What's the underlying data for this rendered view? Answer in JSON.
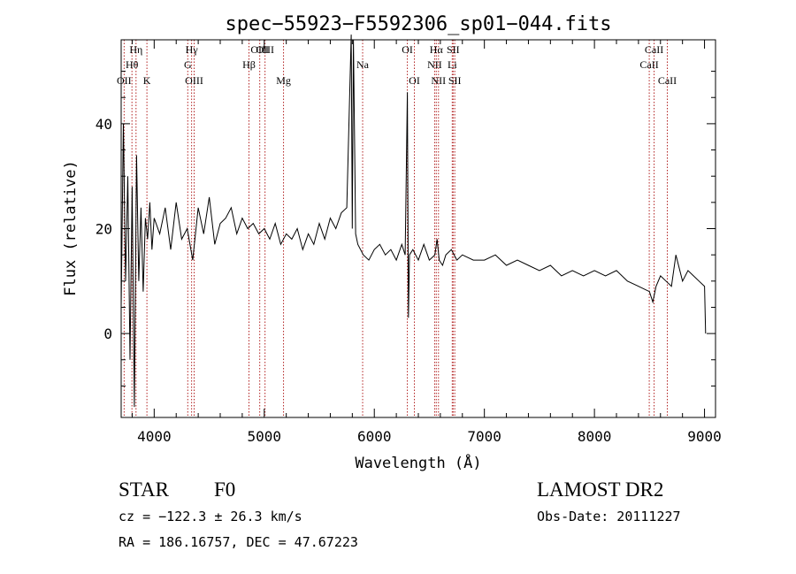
{
  "chart_data": {
    "type": "line",
    "title": "spec−55923−F5592306_sp01−044.fits",
    "xlabel": "Wavelength (Å)",
    "ylabel": "Flux (relative)",
    "xlim": [
      3700,
      9100
    ],
    "ylim": [
      -16,
      56
    ],
    "xticks": [
      4000,
      5000,
      6000,
      7000,
      8000,
      9000
    ],
    "yticks": [
      0,
      20,
      40
    ],
    "line_color": "#000000",
    "marker_color": "#b22222",
    "series": [
      {
        "x": [
          3700,
          3720,
          3740,
          3760,
          3780,
          3800,
          3820,
          3840,
          3860,
          3880,
          3900,
          3920,
          3940,
          3960,
          3980,
          4000,
          4050,
          4100,
          4150,
          4200,
          4250,
          4300,
          4350,
          4400,
          4450,
          4500,
          4550,
          4600,
          4650,
          4700,
          4750,
          4800,
          4850,
          4900,
          4950,
          5000,
          5050,
          5100,
          5150,
          5200,
          5250,
          5300,
          5350,
          5400,
          5450,
          5500,
          5550,
          5600,
          5650,
          5700,
          5750,
          5790,
          5800,
          5810,
          5830,
          5850,
          5900,
          5950,
          6000,
          6050,
          6100,
          6150,
          6200,
          6250,
          6280,
          6300,
          6310,
          6320,
          6350,
          6400,
          6450,
          6500,
          6550,
          6570,
          6590,
          6620,
          6650,
          6700,
          6750,
          6800,
          6900,
          7000,
          7100,
          7200,
          7300,
          7400,
          7500,
          7600,
          7700,
          7800,
          7900,
          8000,
          8100,
          8200,
          8300,
          8400,
          8500,
          8530,
          8560,
          8600,
          8650,
          8700,
          8740,
          8800,
          8850,
          8900,
          8950,
          9000,
          9010
        ],
        "y": [
          5,
          40,
          10,
          30,
          -5,
          28,
          -14,
          34,
          10,
          24,
          8,
          22,
          18,
          25,
          16,
          22,
          19,
          24,
          16,
          25,
          18,
          20,
          14,
          24,
          19,
          26,
          17,
          21,
          22,
          24,
          19,
          22,
          20,
          21,
          19,
          20,
          18,
          21,
          17,
          19,
          18,
          20,
          16,
          19,
          17,
          21,
          18,
          22,
          20,
          23,
          24,
          57,
          20,
          56,
          19,
          17,
          15,
          14,
          16,
          17,
          15,
          16,
          14,
          17,
          15,
          46,
          3,
          15,
          16,
          14,
          17,
          14,
          15,
          18,
          14,
          13,
          15,
          16,
          14,
          15,
          14,
          14,
          15,
          13,
          14,
          13,
          12,
          13,
          11,
          12,
          11,
          12,
          11,
          12,
          10,
          9,
          8,
          6,
          9,
          11,
          10,
          9,
          15,
          10,
          12,
          11,
          10,
          9,
          0
        ]
      }
    ],
    "lines": [
      {
        "label": "OII",
        "wavelength": 3727,
        "row": 3,
        "text_offset": 0
      },
      {
        "label": "Hθ",
        "wavelength": 3798,
        "row": 2,
        "text_offset": 0
      },
      {
        "label": "Hη",
        "wavelength": 3835,
        "row": 1,
        "text_offset": 0
      },
      {
        "label": "K",
        "wavelength": 3934,
        "row": 3,
        "text_offset": 0
      },
      {
        "label": "Hγ",
        "wavelength": 4340,
        "row": 1,
        "text_offset": 0
      },
      {
        "label": "G",
        "wavelength": 4305,
        "row": 2,
        "text_offset": 0
      },
      {
        "label": "OIII",
        "wavelength": 4363,
        "row": 3,
        "text_offset": 0
      },
      {
        "label": "Hβ",
        "wavelength": 4861,
        "row": 2,
        "text_offset": 0
      },
      {
        "label": "OIII",
        "wavelength": 4959,
        "row": 1,
        "text_offset": 0
      },
      {
        "label": "OIII",
        "wavelength": 5007,
        "row": 0,
        "text_offset": 0
      },
      {
        "label": "Mg",
        "wavelength": 5175,
        "row": 3,
        "text_offset": 0
      },
      {
        "label": "Na",
        "wavelength": 5894,
        "row": 2,
        "text_offset": 0
      },
      {
        "label": "OI",
        "wavelength": 6300,
        "row": 1,
        "text_offset": 0
      },
      {
        "label": "OI",
        "wavelength": 6364,
        "row": 3,
        "text_offset": 0
      },
      {
        "label": "Hα",
        "wavelength": 6563,
        "row": 1,
        "text_offset": 0
      },
      {
        "label": "NII",
        "wavelength": 6548,
        "row": 2,
        "text_offset": 0
      },
      {
        "label": "NII",
        "wavelength": 6583,
        "row": 3,
        "text_offset": 0
      },
      {
        "label": "SII",
        "wavelength": 6716,
        "row": 1,
        "text_offset": 0
      },
      {
        "label": "Li",
        "wavelength": 6708,
        "row": 2,
        "text_offset": 0
      },
      {
        "label": "SII",
        "wavelength": 6731,
        "row": 3,
        "text_offset": 0
      },
      {
        "label": "CaII",
        "wavelength": 8542,
        "row": 1,
        "text_offset": 0
      },
      {
        "label": "CaII",
        "wavelength": 8498,
        "row": 2,
        "text_offset": 0
      },
      {
        "label": "CaII",
        "wavelength": 8662,
        "row": 3,
        "text_offset": 0
      }
    ]
  },
  "info": {
    "class_label": "STAR",
    "subclass_label": "F0",
    "survey_label": "LAMOST DR2",
    "cz_text": "cz = −122.3 ± 26.3 km/s",
    "obsdate_text": "Obs-Date: 20111227",
    "coords_text": "RA = 186.16757, DEC =  47.67223"
  }
}
